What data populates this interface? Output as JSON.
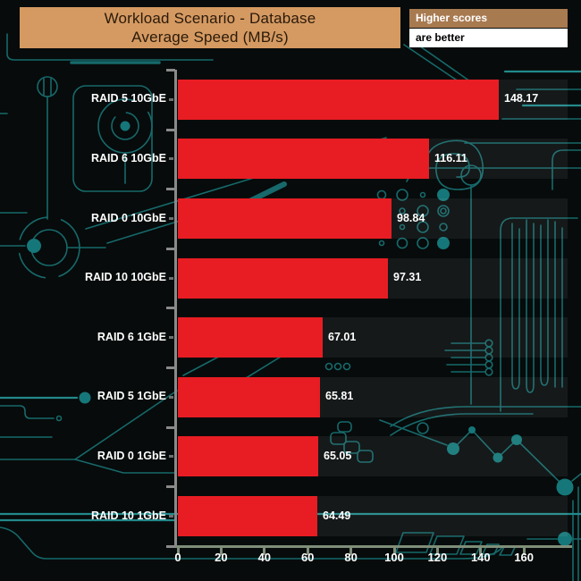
{
  "header": {
    "title_line1": "Workload Scenario - Database",
    "title_line2": "Average Speed (MB/s)",
    "note_line1": "Higher scores",
    "note_line2": "are better"
  },
  "chart_data": {
    "type": "bar",
    "orientation": "horizontal",
    "title": "Workload Scenario - Database Average Speed (MB/s)",
    "categories": [
      "RAID 5 10GbE",
      "RAID 6 10GbE",
      "RAID 0 10GbE",
      "RAID 10 10GbE",
      "RAID 6 1GbE",
      "RAID 5 1GbE",
      "RAID 0 1GbE",
      "RAID 10 1GbE"
    ],
    "values": [
      148.17,
      116.11,
      98.84,
      97.31,
      67.01,
      65.81,
      65.05,
      64.49
    ],
    "value_labels": [
      "148.17",
      "116.11",
      "98.84",
      "97.31",
      "67.01",
      "65.81",
      "65.05",
      "64.49"
    ],
    "units": "MB/s",
    "xlabel": "",
    "ylabel": "",
    "xlim": [
      0,
      160
    ],
    "xticks": [
      0,
      20,
      40,
      60,
      80,
      100,
      120,
      140,
      160
    ],
    "grid": false,
    "legend_position": "none",
    "bars_sorted_descending": true
  },
  "colors": {
    "background": "#070b0b",
    "bar": "#e81d23",
    "title_bg": "#d59a62",
    "title_text": "#2a1a0a",
    "note_top_bg": "#a87a50",
    "note_top_text": "#ffffff",
    "note_bottom_bg": "#ffffff",
    "note_bottom_text": "#000000",
    "axis_y": "#8a8a8a",
    "axis_x": "#7f8e79",
    "label_text": "#ffffff",
    "circuit": "#17696b",
    "circuit_bright": "#22898b",
    "circuit_fill": "#157779"
  }
}
